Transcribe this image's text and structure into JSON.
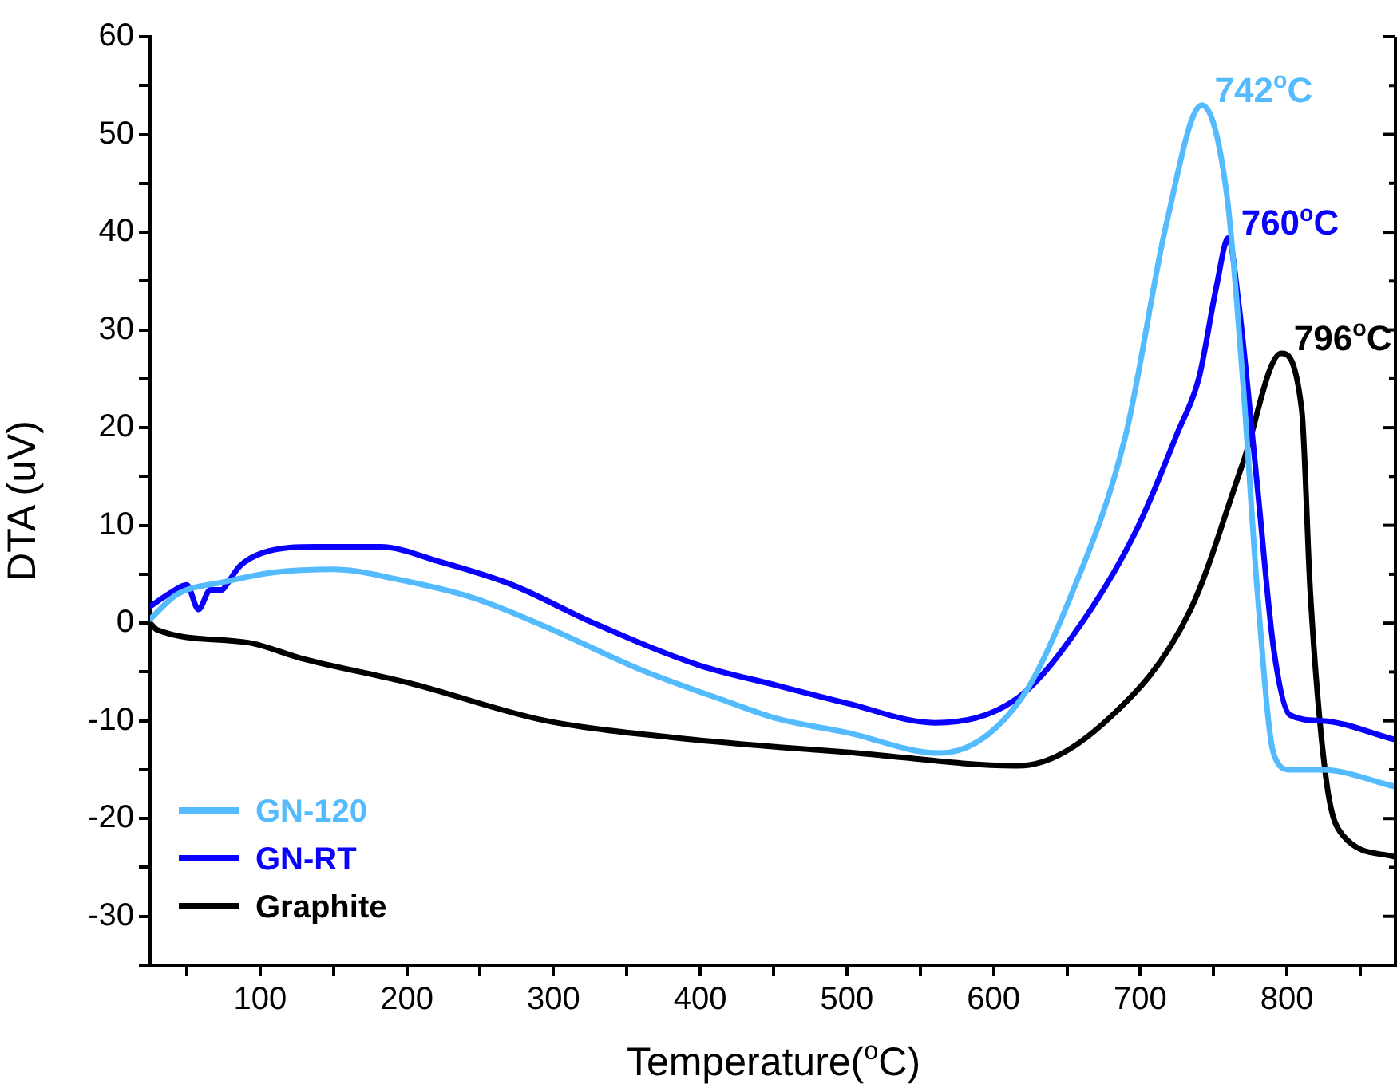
{
  "chart_data": {
    "type": "line",
    "xlabel": "Temperature($^{o}$C)",
    "ylabel": "DTA (uV)",
    "xlim": [
      25,
      875
    ],
    "ylim": [
      -35,
      60
    ],
    "xticks": [
      {
        "value": 50,
        "label": null
      },
      100,
      {
        "value": 150,
        "label": null
      },
      200,
      {
        "value": 250,
        "label": null
      },
      300,
      {
        "value": 350,
        "label": null
      },
      400,
      {
        "value": 450,
        "label": null
      },
      500,
      {
        "value": 550,
        "label": null
      },
      600,
      {
        "value": 650,
        "label": null
      },
      700,
      {
        "value": 750,
        "label": null
      },
      800,
      {
        "value": 850,
        "label": null
      }
    ],
    "yticks": [
      {
        "value": -35,
        "label": null
      },
      -30,
      {
        "value": -25,
        "label": null
      },
      -20,
      {
        "value": -15,
        "label": null
      },
      -10,
      {
        "value": -5,
        "label": null
      },
      0,
      {
        "value": 5,
        "label": null
      },
      10,
      {
        "value": 15,
        "label": null
      },
      20,
      {
        "value": 25,
        "label": null
      },
      30,
      {
        "value": 35,
        "label": null
      },
      40,
      {
        "value": 45,
        "label": null
      },
      50,
      {
        "value": 55,
        "label": null
      },
      60
    ],
    "grid": false,
    "legend": "bottom left",
    "marker": "none",
    "line_style": "solid",
    "series": [
      {
        "name": "GN-120",
        "color": "#55bbff",
        "x": [
          25,
          43,
          75,
          110,
          150,
          193,
          245,
          295,
          360,
          418,
          453,
          500,
          563,
          617,
          653,
          690,
          718,
          742,
          759,
          770,
          780,
          791,
          802,
          824,
          873
        ],
        "values": [
          0.4,
          2.9,
          4.2,
          5.2,
          5.5,
          4.5,
          2.6,
          -0.4,
          -4.8,
          -8,
          -9.8,
          -11.2,
          -13.3,
          -8.1,
          2.9,
          19.2,
          41,
          53,
          43.8,
          24.6,
          2.9,
          -13.4,
          -15,
          -15,
          -16.7
        ]
      },
      {
        "name": "GN-RT",
        "color": "#0a00ff",
        "x": [
          25,
          40,
          50,
          58,
          66,
          74,
          77,
          86,
          102,
          138,
          182,
          222,
          272,
          326,
          399,
          453,
          500,
          560,
          617,
          660,
          697,
          726,
          740,
          752,
          760,
          767,
          780,
          791,
          802,
          824,
          873
        ],
        "values": [
          1.7,
          3.2,
          3.9,
          1.4,
          3.4,
          3.4,
          3.9,
          5.8,
          7.2,
          7.8,
          7.8,
          6.3,
          3.9,
          0.1,
          -4.3,
          -6.4,
          -8.2,
          -10.2,
          -7.6,
          0,
          9.4,
          19.7,
          25.1,
          34.5,
          39.4,
          32.8,
          13.7,
          -2.7,
          -9.4,
          -10,
          -11.9
        ]
      },
      {
        "name": "Graphite",
        "color": "#000000",
        "x": [
          25,
          30,
          92,
          128,
          201,
          295,
          381,
          454,
          500,
          617,
          679,
          734,
          770,
          796,
          810,
          816,
          827,
          838,
          873
        ],
        "values": [
          0,
          -0.7,
          -2,
          -3.6,
          -6.1,
          -10,
          -11.7,
          -12.7,
          -13.2,
          -14.6,
          -9.7,
          1.3,
          16.4,
          27.6,
          21.9,
          2.9,
          -16.3,
          -21.7,
          -23.9
        ]
      }
    ],
    "annotations": [
      {
        "text": "742$^{o}$C",
        "x": 742,
        "y": 53
      },
      {
        "text": "760$^{o}$C",
        "x": 760,
        "y": 39.4
      },
      {
        "text": "796$^{o}$C",
        "x": 796,
        "y": 27.6
      }
    ]
  }
}
